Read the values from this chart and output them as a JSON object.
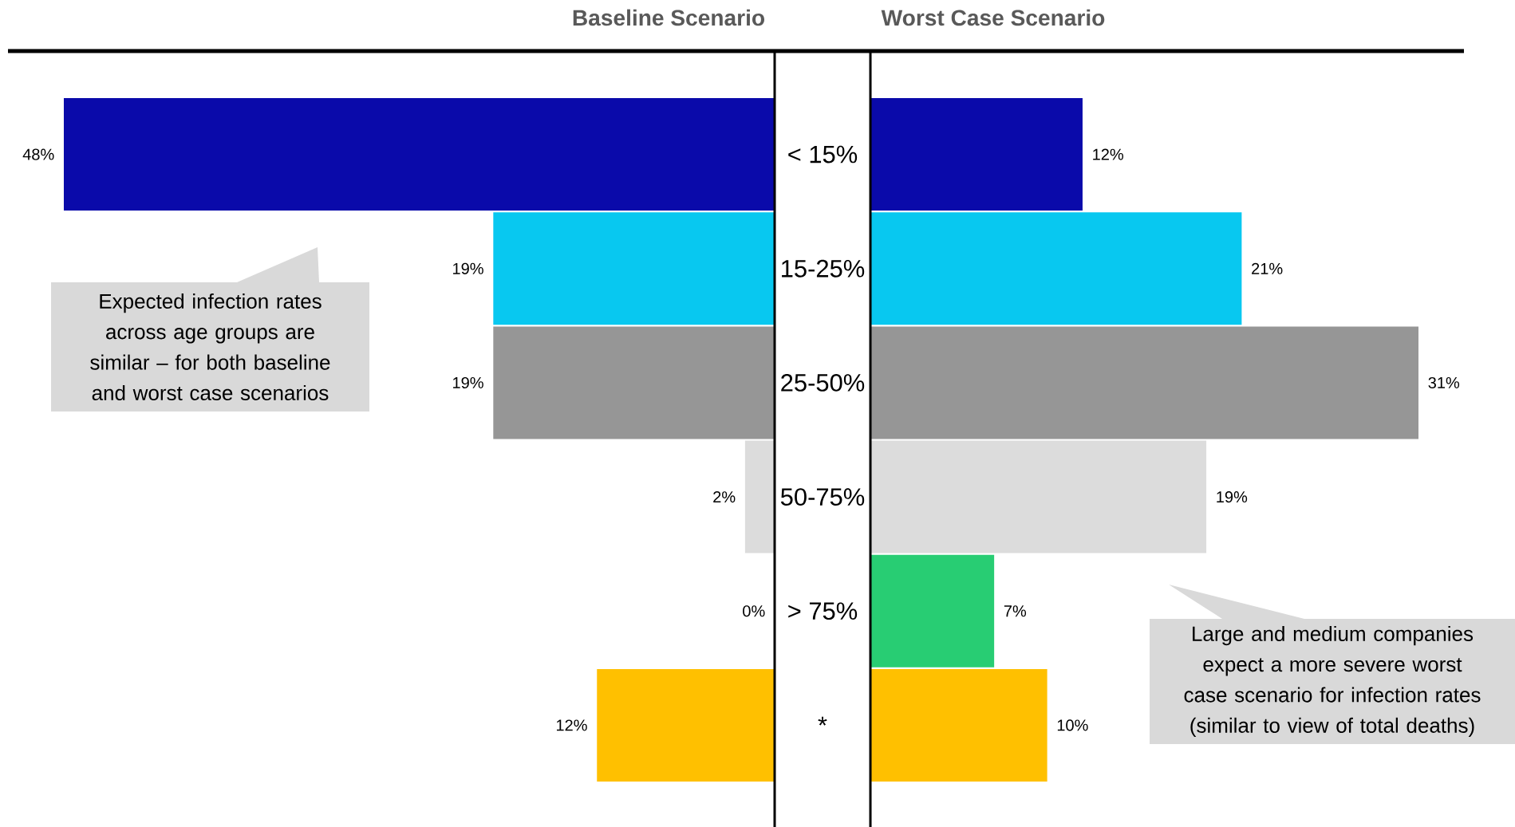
{
  "chart_data": [
    {
      "type": "bar",
      "orientation": "horizontal",
      "title": "Baseline Scenario",
      "categories": [
        "< 15%",
        "15-25%",
        "25-50%",
        "50-75%",
        "> 75%",
        "*"
      ],
      "values": [
        48,
        19,
        19,
        2,
        0,
        12
      ],
      "colors": [
        "#0a0aaa",
        "#08c8f0",
        "#969696",
        "#dcdcdc",
        "#28cd73",
        "#ffc000"
      ],
      "value_labels": [
        "48%",
        "19%",
        "19%",
        "2%",
        "0%",
        "12%"
      ],
      "tick_labels": "y",
      "annotations": [
        "Expected infection rates across age groups are similar – for both baseline and worst case scenarios"
      ]
    },
    {
      "type": "bar",
      "orientation": "horizontal",
      "title": "Worst Case Scenario",
      "categories": [
        null,
        null,
        null,
        null,
        null,
        null
      ],
      "values": [
        12,
        21,
        31,
        19,
        7,
        10
      ],
      "colors": [
        "#0a0aaa",
        "#08c8f0",
        "#969696",
        "#dcdcdc",
        "#28cd73",
        "#ffc000"
      ],
      "value_labels": [
        "12%",
        "21%",
        "31%",
        "19%",
        "7%",
        "10%"
      ],
      "tick_labels": false,
      "annotations": [
        "Large and medium companies expect a more severe worst case scenario for infection rates (similar to view of total deaths)"
      ]
    }
  ]
}
